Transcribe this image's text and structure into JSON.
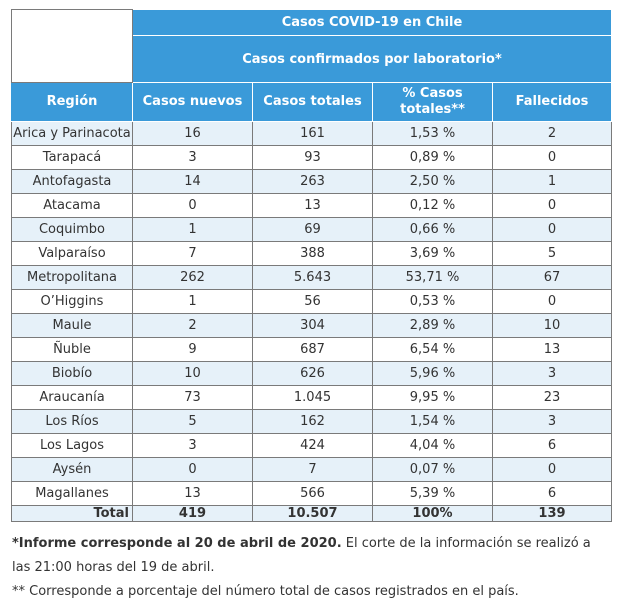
{
  "header": {
    "title": "Casos COVID-19 en Chile",
    "subtitle": "Casos confirmados por laboratorio*",
    "columns": [
      "Región",
      "Casos nuevos",
      "Casos totales",
      "% Casos totales**",
      "Fallecidos"
    ]
  },
  "rows": [
    [
      "Arica y Parinacota",
      "16",
      "161",
      "1,53 %",
      "2"
    ],
    [
      "Tarapacá",
      "3",
      "93",
      "0,89 %",
      "0"
    ],
    [
      "Antofagasta",
      "14",
      "263",
      "2,50 %",
      "1"
    ],
    [
      "Atacama",
      "0",
      "13",
      "0,12 %",
      "0"
    ],
    [
      "Coquimbo",
      "1",
      "69",
      "0,66 %",
      "0"
    ],
    [
      "Valparaíso",
      "7",
      "388",
      "3,69 %",
      "5"
    ],
    [
      "Metropolitana",
      "262",
      "5.643",
      "53,71 %",
      "67"
    ],
    [
      "O’Higgins",
      "1",
      "56",
      "0,53 %",
      "0"
    ],
    [
      "Maule",
      "2",
      "304",
      "2,89 %",
      "10"
    ],
    [
      "Ñuble",
      "9",
      "687",
      "6,54 %",
      "13"
    ],
    [
      "Biobío",
      "10",
      "626",
      "5,96 %",
      "3"
    ],
    [
      "Araucanía",
      "73",
      "1.045",
      "9,95 %",
      "23"
    ],
    [
      "Los Ríos",
      "5",
      "162",
      "1,54 %",
      "3"
    ],
    [
      "Los Lagos",
      "3",
      "424",
      "4,04 %",
      "6"
    ],
    [
      "Aysén",
      "0",
      "7",
      "0,07 %",
      "0"
    ],
    [
      "Magallanes",
      "13",
      "566",
      "5,39 %",
      "6"
    ]
  ],
  "total": [
    "Total",
    "419",
    "10.507",
    "100%",
    "139"
  ],
  "notes": {
    "note1_bold": "*Informe corresponde al 20 de abril de 2020.",
    "note1_rest": " El corte de la información se realizó a las 21:00 horas del 19 de abril.",
    "note2": "** Corresponde a porcentaje del número total de casos registrados en el país."
  },
  "colors": {
    "header_bg": "#3a9ad9",
    "stripe_bg": "#e6f1f9"
  }
}
